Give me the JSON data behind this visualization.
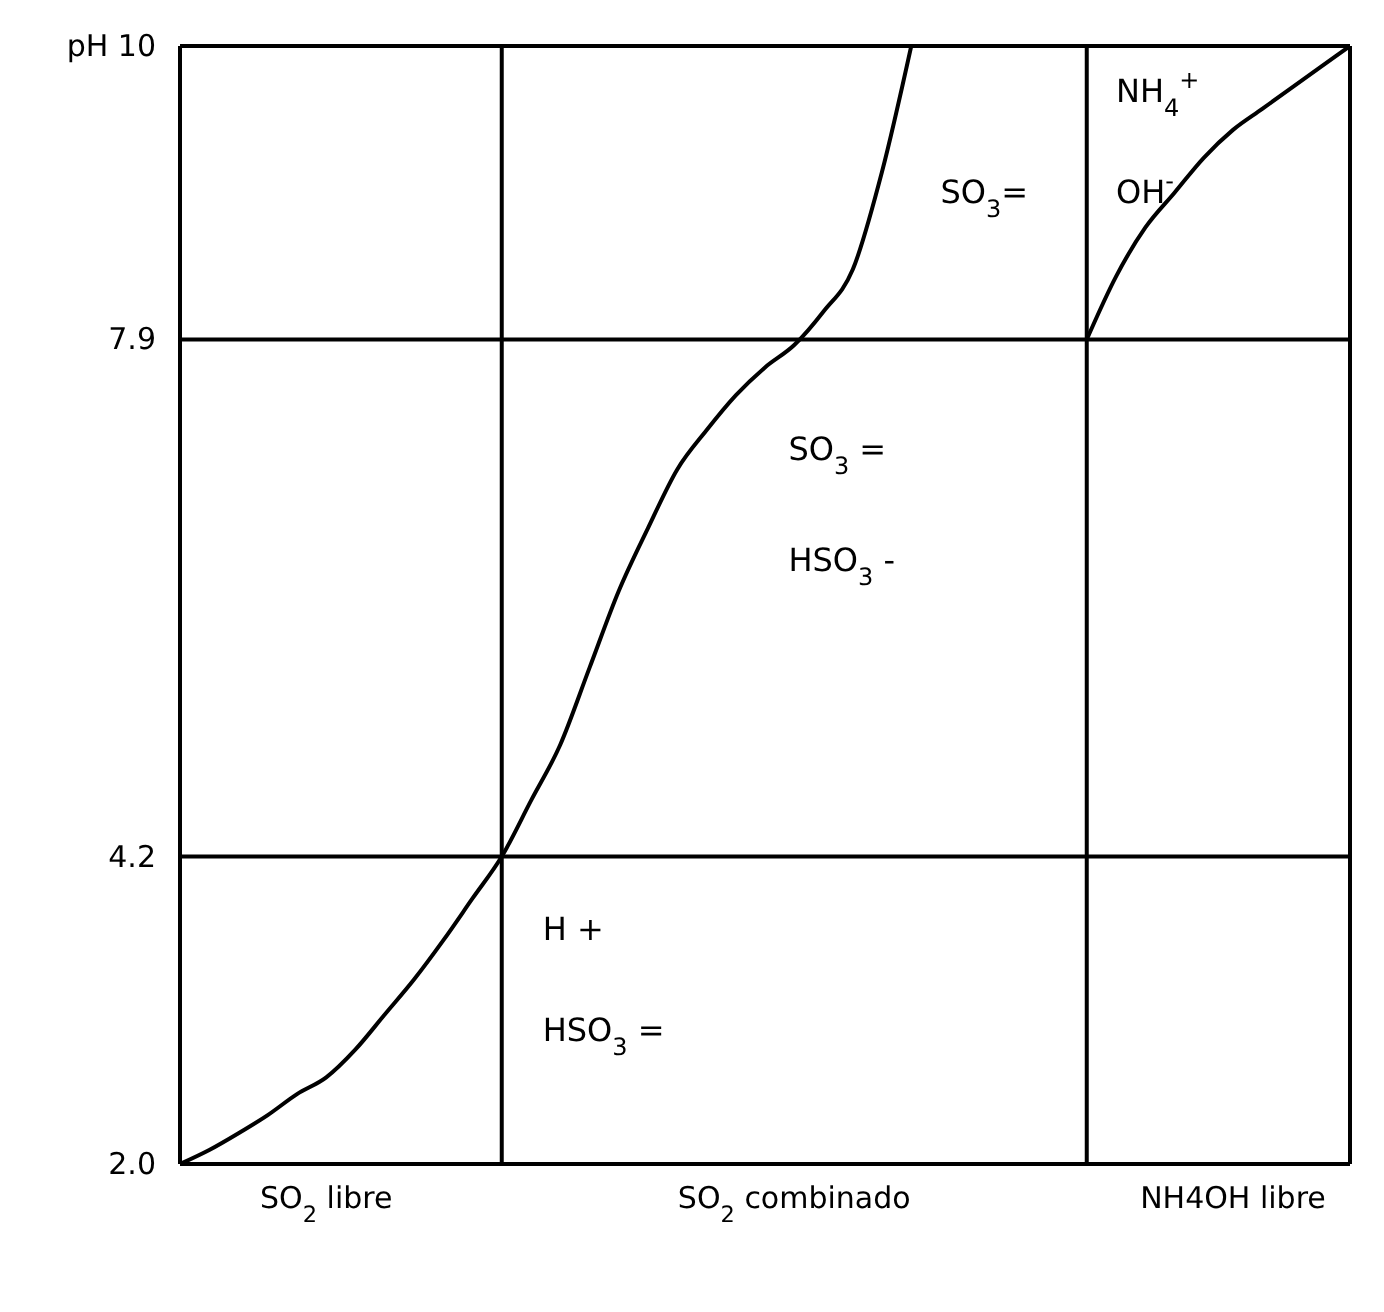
{
  "chart_data": {
    "type": "line",
    "categories": [
      null,
      null,
      null,
      null,
      null,
      "SO$_{2}$ libre",
      null,
      null,
      null,
      null,
      null,
      null,
      null,
      null,
      null,
      null,
      null,
      null,
      null,
      null,
      null,
      "SO$_{2}$ combinado",
      null,
      null,
      null,
      null,
      null,
      null,
      null,
      null,
      null,
      null,
      null,
      null,
      null,
      null,
      "NH4OH libre",
      null,
      null,
      null,
      null
    ],
    "series": [
      {
        "color": "#000000",
        "values": [
          2.0,
          2.1,
          2.22,
          2.35,
          2.5,
          2.62,
          2.82,
          3.07,
          3.32,
          3.6,
          3.9,
          4.2,
          4.6,
          5.0,
          5.55,
          6.1,
          6.55,
          6.97,
          7.25,
          7.5,
          7.7,
          7.86,
          8.1,
          8.4,
          9.1,
          10,
          null,
          null,
          null,
          null,
          null,
          null,
          null,
          null,
          null,
          null,
          null,
          null,
          null,
          null,
          null
        ]
      },
      {
        "color": "#000000",
        "values": [
          null,
          null,
          null,
          null,
          null,
          null,
          null,
          null,
          null,
          null,
          null,
          null,
          null,
          null,
          null,
          null,
          null,
          null,
          null,
          null,
          null,
          null,
          null,
          null,
          null,
          null,
          null,
          null,
          null,
          null,
          null,
          7.9,
          8.35,
          8.7,
          8.95,
          9.2,
          9.4,
          9.55,
          9.7,
          9.85,
          10
        ]
      }
    ],
    "ylim": [
      2.0,
      10
    ],
    "yticks": [
      {
        "value": 2.0,
        "label": "2.0"
      },
      4.2,
      7.9,
      {
        "value": 10,
        "label": "pH 10"
      }
    ],
    "grid": true,
    "annotations": [
      "NH$_{4}$$^{+}$",
      "SO$_{3}$=",
      "OH$^{-}$",
      "SO$_{3}$ =",
      "HSO$_{3}$ -",
      "H +",
      "HSO$_{3}$ ="
    ],
    "line_style": "solid",
    "marker": "none"
  }
}
